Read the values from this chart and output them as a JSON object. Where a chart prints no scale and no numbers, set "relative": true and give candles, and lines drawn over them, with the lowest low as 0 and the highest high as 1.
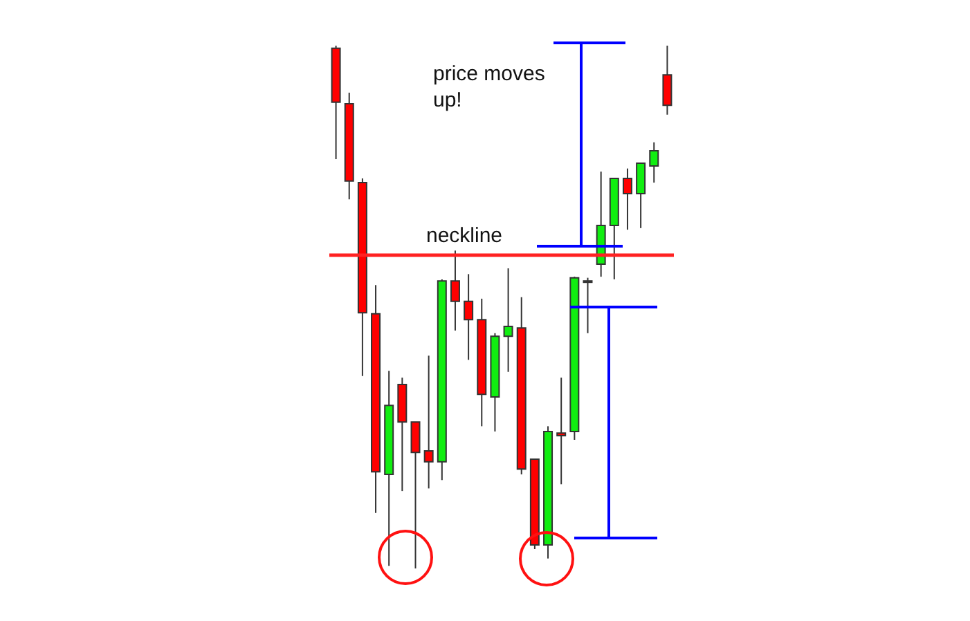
{
  "chart_data": {
    "type": "candlestick",
    "relative": true,
    "categories": [
      null,
      null,
      null,
      null,
      null,
      null,
      null,
      null,
      null,
      null,
      null,
      null,
      null,
      null,
      null,
      null,
      null,
      null,
      null,
      null,
      null,
      null,
      null,
      null,
      null,
      null
    ],
    "ohlc": [
      [
        0.995,
        1.0,
        0.783,
        0.892
      ],
      [
        0.889,
        0.91,
        0.706,
        0.741
      ],
      [
        0.738,
        0.746,
        0.368,
        0.489
      ],
      [
        0.487,
        0.542,
        0.106,
        0.185
      ],
      [
        0.18,
        0.378,
        0.005,
        0.312
      ],
      [
        0.352,
        0.365,
        0.148,
        0.28
      ],
      [
        0.28,
        0.28,
        0.0,
        0.222
      ],
      [
        0.225,
        0.407,
        0.153,
        0.204
      ],
      [
        0.204,
        0.553,
        0.169,
        0.55
      ],
      [
        0.55,
        0.608,
        0.455,
        0.511
      ],
      [
        0.511,
        0.563,
        0.399,
        0.476
      ],
      [
        0.476,
        0.516,
        0.272,
        0.333
      ],
      [
        0.328,
        0.45,
        0.262,
        0.444
      ],
      [
        0.444,
        0.574,
        0.376,
        0.463
      ],
      [
        0.46,
        0.519,
        0.18,
        0.19
      ],
      [
        0.209,
        0.209,
        0.037,
        0.045
      ],
      [
        0.045,
        0.272,
        0.019,
        0.262
      ],
      [
        0.259,
        0.365,
        0.161,
        0.254
      ],
      [
        0.262,
        0.558,
        0.246,
        0.556
      ],
      [
        0.55,
        0.556,
        0.45,
        0.55
      ],
      [
        0.582,
        0.759,
        0.558,
        0.656
      ],
      [
        0.656,
        0.746,
        0.553,
        0.746
      ],
      [
        0.746,
        0.765,
        0.648,
        0.717
      ],
      [
        0.717,
        0.775,
        0.651,
        0.775
      ],
      [
        0.77,
        0.815,
        0.738,
        0.799
      ],
      [
        0.944,
        1.0,
        0.868,
        0.886
      ]
    ],
    "colors": [
      "#ff0000",
      "#ff0000",
      "#ff0000",
      "#ff0000",
      "#11ee11",
      "#ff0000",
      "#ff0000",
      "#ff0000",
      "#11ee11",
      "#ff0000",
      "#ff0000",
      "#ff0000",
      "#11ee11",
      "#11ee11",
      "#ff0000",
      "#ff0000",
      "#11ee11",
      "#ff0000",
      "#11ee11",
      "#000000",
      "#11ee11",
      "#11ee11",
      "#ff0000",
      "#11ee11",
      "#11ee11",
      "#ff0000"
    ],
    "ref_lines": [
      {
        "axis": "y",
        "value": 0.603,
        "label": "neckline",
        "color": "#ff2222",
        "line_style": "solid"
      }
    ],
    "annotations": [
      "price moves up!"
    ]
  }
}
